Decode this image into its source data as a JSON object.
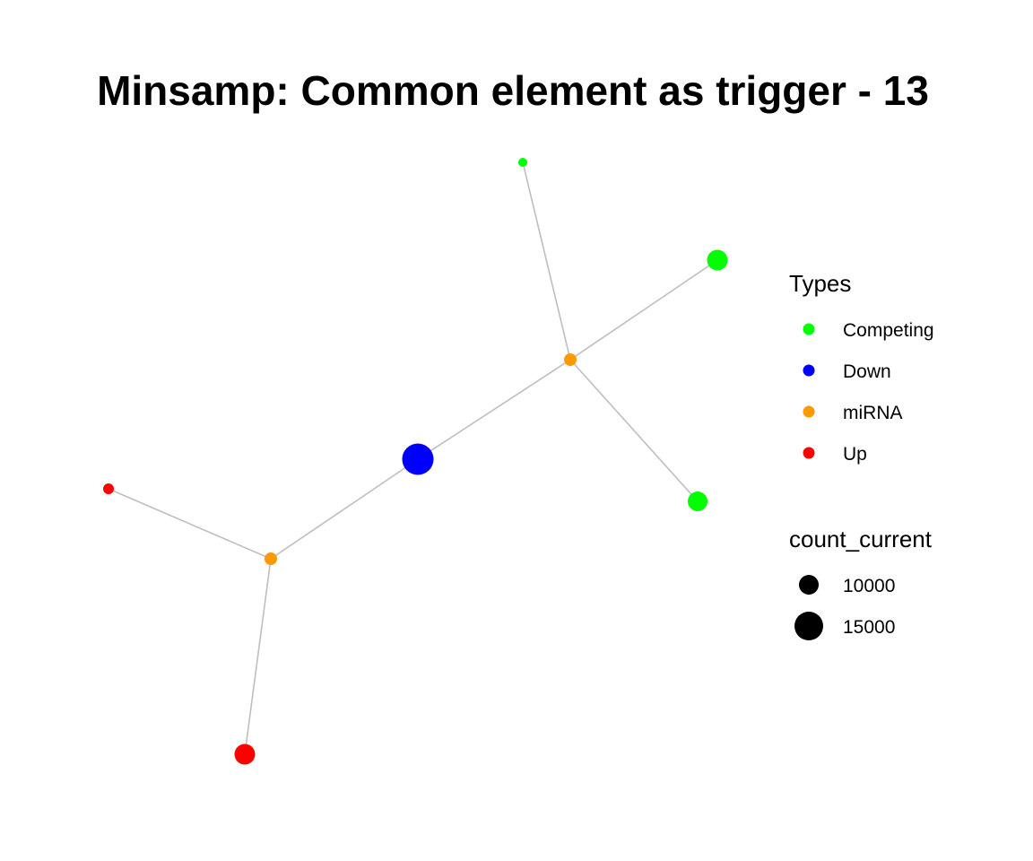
{
  "title": "Minsamp: Common element as trigger - 13",
  "colors": {
    "Competing": "#00ff00",
    "Down": "#0000ff",
    "miRNA": "#ff9900",
    "Up": "#ff0000",
    "edge": "#bebebe"
  },
  "network": {
    "nodes": [
      {
        "id": "competing-1",
        "type": "Competing",
        "count_current": 4000
      },
      {
        "id": "competing-2",
        "type": "Competing",
        "count_current": 10500
      },
      {
        "id": "competing-3",
        "type": "Competing",
        "count_current": 10000
      },
      {
        "id": "mirna-1",
        "type": "miRNA",
        "count_current": 6000
      },
      {
        "id": "down-1",
        "type": "Down",
        "count_current": 16500
      },
      {
        "id": "up-1",
        "type": "Up",
        "count_current": 5000
      },
      {
        "id": "mirna-2",
        "type": "miRNA",
        "count_current": 6000
      },
      {
        "id": "up-2",
        "type": "Up",
        "count_current": 10500
      }
    ],
    "edges": [
      [
        "competing-1",
        "mirna-1"
      ],
      [
        "competing-2",
        "mirna-1"
      ],
      [
        "mirna-1",
        "competing-3"
      ],
      [
        "mirna-1",
        "down-1"
      ],
      [
        "down-1",
        "mirna-2"
      ],
      [
        "up-1",
        "mirna-2"
      ],
      [
        "mirna-2",
        "up-2"
      ]
    ]
  },
  "legend": {
    "types": {
      "title": "Types",
      "items": [
        "Competing",
        "Down",
        "miRNA",
        "Up"
      ]
    },
    "size": {
      "title": "count_current",
      "items": [
        10000,
        15000
      ]
    }
  }
}
